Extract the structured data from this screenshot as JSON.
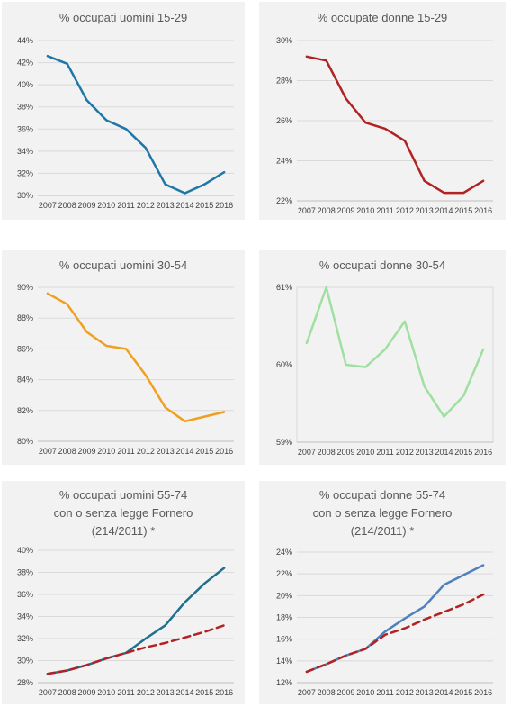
{
  "chart_data": [
    {
      "type": "line",
      "title": "% occupati uomini 15-29",
      "categories": [
        "2007",
        "2008",
        "2009",
        "2010",
        "2011",
        "2012",
        "2013",
        "2014",
        "2015",
        "2016"
      ],
      "y_ticks": [
        "30%",
        "32%",
        "34%",
        "36%",
        "38%",
        "40%",
        "42%",
        "44%"
      ],
      "ylim": [
        30,
        44
      ],
      "grid": true,
      "series": [
        {
          "values": [
            42.6,
            41.9,
            38.6,
            36.8,
            36.0,
            34.3,
            31.0,
            30.2,
            31.0,
            32.1
          ],
          "color": "#1f77a8",
          "dashed": false
        }
      ]
    },
    {
      "type": "line",
      "title": "% occupate donne 15-29",
      "categories": [
        "2007",
        "2008",
        "2009",
        "2010",
        "2011",
        "2012",
        "2013",
        "2014",
        "2015",
        "2016"
      ],
      "y_ticks": [
        "22%",
        "24%",
        "26%",
        "28%",
        "30%"
      ],
      "ylim": [
        22,
        30
      ],
      "grid": true,
      "series": [
        {
          "values": [
            29.2,
            29.0,
            27.1,
            25.9,
            25.6,
            25.0,
            23.0,
            22.4,
            22.4,
            23.0
          ],
          "color": "#b22222",
          "dashed": false
        }
      ]
    },
    {
      "type": "line",
      "title": "% occupati uomini 30-54",
      "categories": [
        "2007",
        "2008",
        "2009",
        "2010",
        "2011",
        "2012",
        "2013",
        "2014",
        "2015",
        "2016"
      ],
      "y_ticks": [
        "80%",
        "82%",
        "84%",
        "86%",
        "88%",
        "90%"
      ],
      "ylim": [
        80,
        90
      ],
      "grid": true,
      "series": [
        {
          "values": [
            89.6,
            88.9,
            87.1,
            86.2,
            86.0,
            84.3,
            82.2,
            81.3,
            81.6,
            81.9
          ],
          "color": "#f0a020",
          "dashed": false
        }
      ]
    },
    {
      "type": "line",
      "title": "% occupati donne 30-54",
      "categories": [
        "2007",
        "2008",
        "2009",
        "2010",
        "2011",
        "2012",
        "2013",
        "2014",
        "2015",
        "2016"
      ],
      "y_ticks": [
        "59%",
        "60%",
        "61%"
      ],
      "ylim": [
        59,
        61
      ],
      "grid": false,
      "series": [
        {
          "values": [
            60.28,
            61.0,
            60.0,
            59.97,
            60.2,
            60.56,
            59.72,
            59.33,
            59.6,
            60.2
          ],
          "color": "#9fe0a0",
          "dashed": false
        }
      ]
    },
    {
      "type": "line",
      "title": "% occupati  uomini 55-74",
      "subtitle": "con o senza legge Fornero",
      "subtitle2": "(214/2011) *",
      "categories": [
        "2007",
        "2008",
        "2009",
        "2010",
        "2011",
        "2012",
        "2013",
        "2014",
        "2015",
        "2016"
      ],
      "y_ticks": [
        "28%",
        "30%",
        "32%",
        "34%",
        "36%",
        "38%",
        "40%"
      ],
      "ylim": [
        28,
        40
      ],
      "grid": true,
      "series": [
        {
          "values": [
            28.8,
            29.1,
            29.6,
            30.2,
            30.7,
            32.0,
            33.2,
            35.3,
            37.0,
            38.4
          ],
          "color": "#1f6f8f",
          "dashed": false
        },
        {
          "values": [
            28.8,
            29.1,
            29.6,
            30.2,
            30.7,
            31.2,
            31.6,
            32.1,
            32.6,
            33.2
          ],
          "color": "#b22222",
          "dashed": true
        }
      ]
    },
    {
      "type": "line",
      "title": "% occupati  donne 55-74",
      "subtitle": "con o senza legge Fornero",
      "subtitle2": "(214/2011) *",
      "categories": [
        "2007",
        "2008",
        "2009",
        "2010",
        "2011",
        "2012",
        "2013",
        "2014",
        "2015",
        "2016"
      ],
      "y_ticks": [
        "12%",
        "14%",
        "16%",
        "18%",
        "20%",
        "22%",
        "24%"
      ],
      "ylim": [
        12,
        24
      ],
      "grid": true,
      "series": [
        {
          "values": [
            13.0,
            13.7,
            14.5,
            15.1,
            16.7,
            17.9,
            19.0,
            21.0,
            21.9,
            22.8
          ],
          "color": "#4f81bd",
          "dashed": false
        },
        {
          "values": [
            13.0,
            13.7,
            14.5,
            15.1,
            16.4,
            17.0,
            17.8,
            18.5,
            19.2,
            20.1
          ],
          "color": "#b22222",
          "dashed": true
        }
      ]
    }
  ]
}
